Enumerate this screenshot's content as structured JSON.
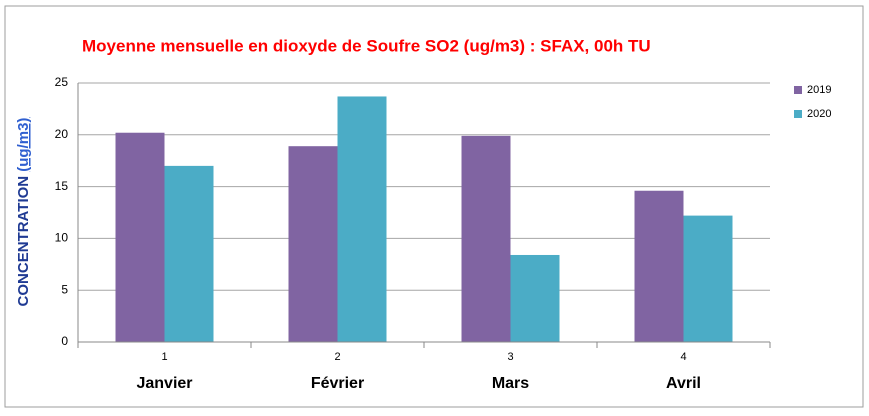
{
  "chart_data": {
    "type": "bar",
    "title": "Moyenne mensuelle en dioxyde de Soufre SO2 (ug/m3) : SFAX, 00h TU",
    "ylabel": "CONCENTRATION",
    "ylabel_unit": "(ug/m3)",
    "categories": [
      "1",
      "2",
      "3",
      "4"
    ],
    "category_names": [
      "Janvier",
      "Février",
      "Mars",
      "Avril"
    ],
    "series": [
      {
        "name": "2019",
        "color": "#8064a2",
        "values": [
          20.2,
          18.9,
          19.9,
          14.6
        ]
      },
      {
        "name": "2020",
        "color": "#4bacc6",
        "values": [
          17.0,
          23.7,
          8.4,
          12.2
        ]
      }
    ],
    "ylim": [
      0,
      25
    ],
    "yticks": [
      0,
      5,
      10,
      15,
      20,
      25
    ],
    "grid": true,
    "legend": "right"
  }
}
